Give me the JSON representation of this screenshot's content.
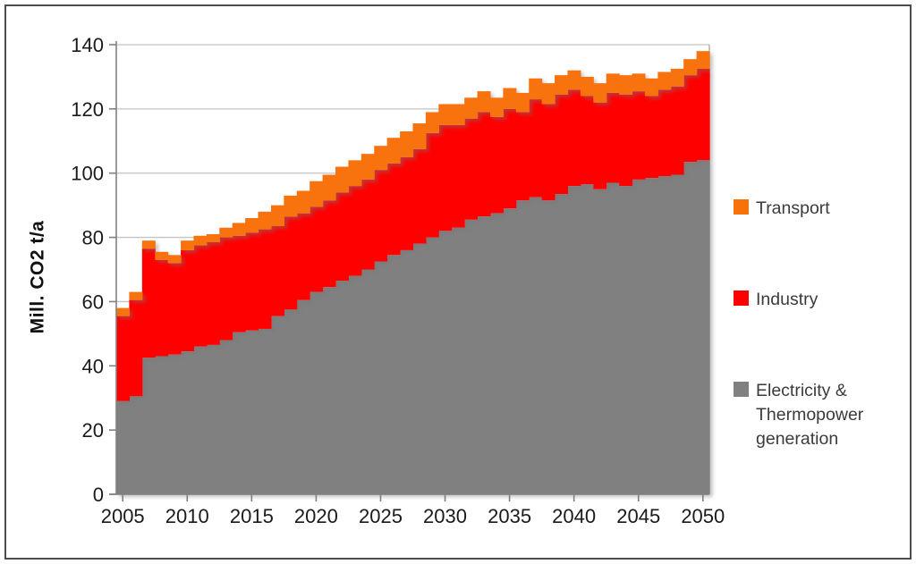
{
  "chart": {
    "y_axis_title": "Mill. CO2 t/a"
  },
  "legend": {
    "position": "right"
  },
  "colors": {
    "transport_orange": "#f87209",
    "industry_red": "#fe0000",
    "electricity_gray": "#808080",
    "gridline": "#c3c3c3",
    "axis": "#808080",
    "tick_text": "#1a1a1a",
    "legend_text": "#3b3b3b"
  },
  "chart_data": {
    "type": "bar",
    "subtype": "stacked-column",
    "title": "",
    "xlabel": "",
    "ylabel": "Mill. CO2 t/a",
    "ylim": [
      0,
      140
    ],
    "y_tick_step": 20,
    "y_tick_labels": [
      "0",
      "20",
      "40",
      "60",
      "80",
      "100",
      "120",
      "140"
    ],
    "x_tick_labels": [
      "2005",
      "2010",
      "2015",
      "2020",
      "2025",
      "2030",
      "2035",
      "2040",
      "2045",
      "2050"
    ],
    "grid": true,
    "legend_position": "right",
    "categories": [
      2005,
      2006,
      2007,
      2008,
      2009,
      2010,
      2011,
      2012,
      2013,
      2014,
      2015,
      2016,
      2017,
      2018,
      2019,
      2020,
      2021,
      2022,
      2023,
      2024,
      2025,
      2026,
      2027,
      2028,
      2029,
      2030,
      2031,
      2032,
      2033,
      2034,
      2035,
      2036,
      2037,
      2038,
      2039,
      2040,
      2041,
      2042,
      2043,
      2044,
      2045,
      2046,
      2047,
      2048,
      2049,
      2050
    ],
    "series": [
      {
        "name": "Electricity & Thermopower generation",
        "color": "#808080",
        "values": [
          29,
          30.5,
          42.5,
          43,
          43.5,
          44.5,
          46,
          46.5,
          48,
          50.5,
          51,
          51.5,
          55.5,
          57.5,
          60.5,
          63,
          64.5,
          66.5,
          68,
          70,
          72.5,
          74.5,
          76,
          78,
          80,
          82,
          83,
          85.5,
          86.5,
          87.5,
          89,
          91.5,
          92.5,
          91.5,
          93.5,
          96,
          96.5,
          95,
          97,
          96,
          98,
          98.5,
          99,
          99.5,
          103.5,
          104
        ]
      },
      {
        "name": "Industry",
        "color": "#fe0000",
        "values": [
          26.5,
          30,
          34,
          30,
          28.5,
          31.5,
          31.5,
          32,
          32,
          30,
          30.5,
          31,
          28,
          29,
          27,
          26.5,
          27,
          27.5,
          28,
          28,
          28.5,
          28.5,
          29,
          29.5,
          32.5,
          33,
          32,
          31.5,
          32.5,
          30,
          31,
          27.5,
          30.5,
          30,
          31,
          30,
          27.5,
          27,
          28,
          28.5,
          27.5,
          25.5,
          27,
          27.5,
          27,
          28.5
        ]
      },
      {
        "name": "Transport",
        "color": "#f87209",
        "values": [
          2.5,
          2.5,
          2.5,
          2.5,
          2.5,
          3,
          3,
          2.5,
          3,
          4,
          4.5,
          5.5,
          6.5,
          6.5,
          7,
          8,
          8,
          8,
          8,
          8,
          7.5,
          8,
          8,
          8,
          6.5,
          6.5,
          6.5,
          6.5,
          6.5,
          6,
          6.5,
          6,
          6.5,
          6.5,
          6,
          6,
          6,
          6,
          6,
          6,
          5.5,
          5.5,
          5.5,
          5.5,
          5,
          5.5
        ]
      }
    ]
  }
}
